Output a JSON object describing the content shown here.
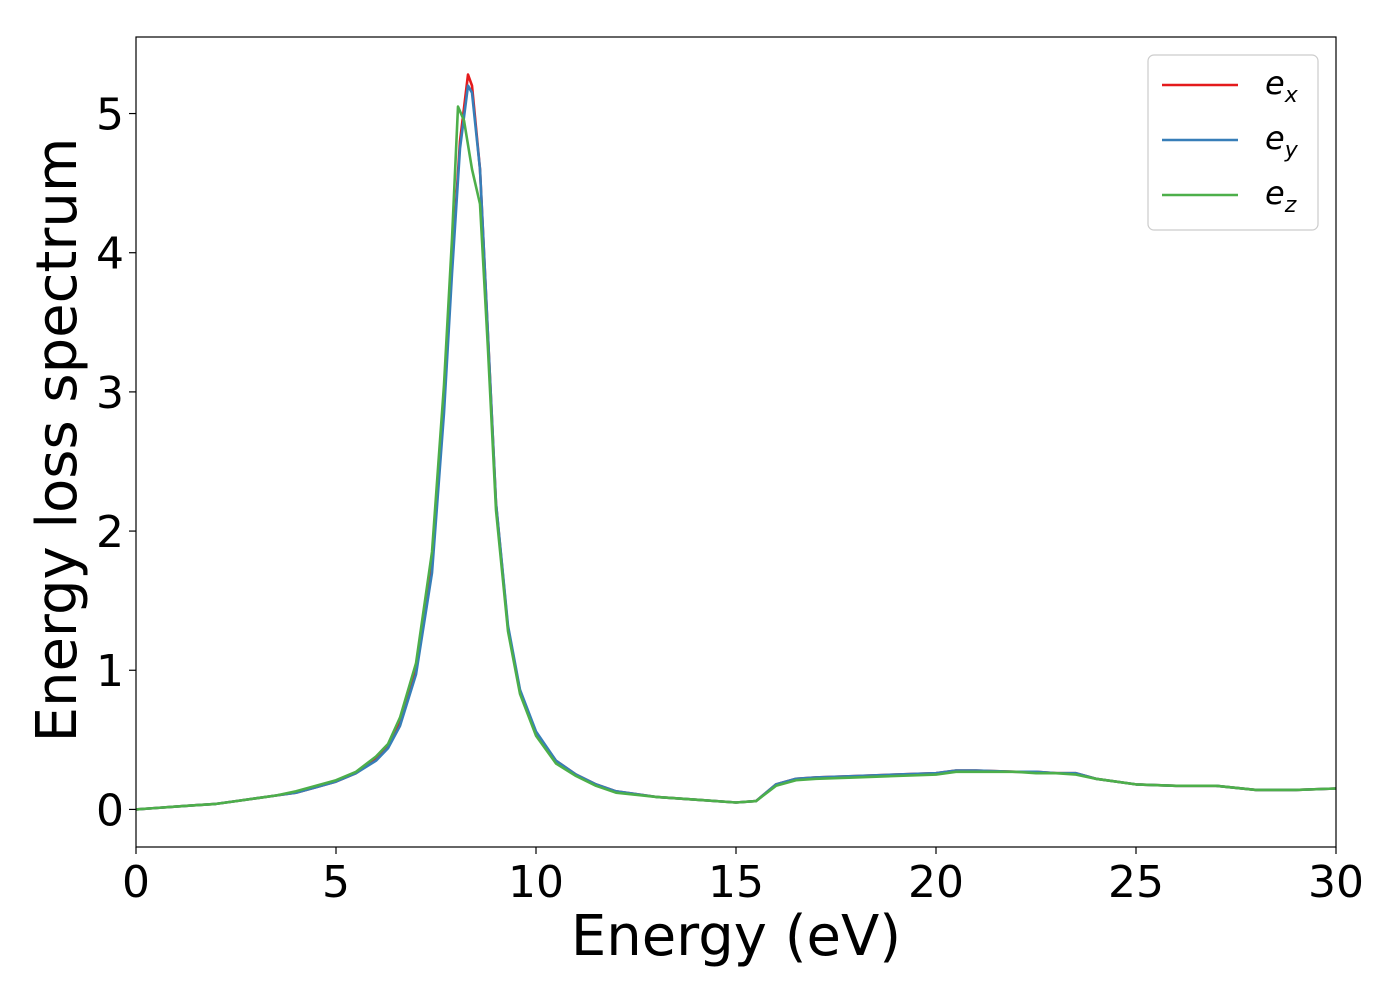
{
  "chart_data": {
    "type": "line",
    "xlabel": "Energy (eV)",
    "ylabel": "Energy loss spectrum",
    "xlim": [
      0,
      30
    ],
    "ylim": [
      -0.27,
      5.55
    ],
    "xticks": [
      0,
      5,
      10,
      15,
      20,
      25,
      30
    ],
    "yticks": [
      0,
      1,
      2,
      3,
      4,
      5
    ],
    "grid": false,
    "legend_position": "top-right",
    "series": [
      {
        "name": "e",
        "sub": "x",
        "color": "#e41a1c",
        "x": [
          0,
          0.5,
          1,
          1.5,
          2,
          2.5,
          3,
          3.5,
          4,
          4.5,
          5,
          5.5,
          6,
          6.3,
          6.6,
          7,
          7.4,
          7.7,
          7.9,
          8.1,
          8.3,
          8.4,
          8.6,
          8.8,
          9,
          9.3,
          9.6,
          10,
          10.5,
          11,
          11.5,
          12,
          13,
          14,
          15,
          15.5,
          16,
          16.5,
          17,
          18,
          19,
          20,
          20.5,
          21,
          22,
          22.5,
          23,
          23.5,
          24,
          25,
          26,
          27,
          28,
          29,
          30
        ],
        "y": [
          0,
          0.01,
          0.02,
          0.03,
          0.04,
          0.06,
          0.08,
          0.1,
          0.12,
          0.16,
          0.2,
          0.26,
          0.36,
          0.45,
          0.62,
          1.0,
          1.75,
          2.9,
          3.9,
          4.8,
          5.28,
          5.2,
          4.6,
          3.4,
          2.2,
          1.3,
          0.85,
          0.55,
          0.35,
          0.25,
          0.18,
          0.13,
          0.09,
          0.07,
          0.05,
          0.06,
          0.18,
          0.22,
          0.23,
          0.24,
          0.25,
          0.26,
          0.28,
          0.28,
          0.27,
          0.27,
          0.26,
          0.26,
          0.22,
          0.18,
          0.17,
          0.17,
          0.14,
          0.14,
          0.15
        ]
      },
      {
        "name": "e",
        "sub": "y",
        "color": "#377eb8",
        "x": [
          0,
          0.5,
          1,
          1.5,
          2,
          2.5,
          3,
          3.5,
          4,
          4.5,
          5,
          5.5,
          6,
          6.3,
          6.6,
          7,
          7.4,
          7.7,
          7.9,
          8.1,
          8.3,
          8.4,
          8.6,
          8.8,
          9,
          9.3,
          9.6,
          10,
          10.5,
          11,
          11.5,
          12,
          13,
          14,
          15,
          15.5,
          16,
          16.5,
          17,
          18,
          19,
          20,
          20.5,
          21,
          22,
          22.5,
          23,
          23.5,
          24,
          25,
          26,
          27,
          28,
          29,
          30
        ],
        "y": [
          0,
          0.01,
          0.02,
          0.03,
          0.04,
          0.06,
          0.08,
          0.1,
          0.12,
          0.16,
          0.2,
          0.26,
          0.35,
          0.44,
          0.6,
          0.97,
          1.7,
          2.85,
          3.85,
          4.75,
          5.2,
          5.15,
          4.6,
          3.4,
          2.2,
          1.32,
          0.86,
          0.56,
          0.35,
          0.25,
          0.18,
          0.13,
          0.09,
          0.07,
          0.05,
          0.06,
          0.18,
          0.22,
          0.23,
          0.24,
          0.25,
          0.26,
          0.28,
          0.28,
          0.27,
          0.27,
          0.26,
          0.26,
          0.22,
          0.18,
          0.17,
          0.17,
          0.14,
          0.14,
          0.15
        ]
      },
      {
        "name": "e",
        "sub": "z",
        "color": "#4daf4a",
        "x": [
          0,
          0.5,
          1,
          1.5,
          2,
          2.5,
          3,
          3.5,
          4,
          4.5,
          5,
          5.5,
          6,
          6.3,
          6.6,
          7,
          7.4,
          7.7,
          7.9,
          8.05,
          8.2,
          8.4,
          8.6,
          8.8,
          9,
          9.3,
          9.6,
          10,
          10.5,
          11,
          11.5,
          12,
          13,
          14,
          15,
          15.5,
          16,
          16.5,
          17,
          18,
          19,
          20,
          20.5,
          21,
          22,
          22.5,
          23,
          23.5,
          24,
          25,
          26,
          27,
          28,
          29,
          30
        ],
        "y": [
          0,
          0.01,
          0.02,
          0.03,
          0.04,
          0.06,
          0.08,
          0.1,
          0.13,
          0.17,
          0.21,
          0.27,
          0.38,
          0.47,
          0.66,
          1.05,
          1.85,
          3.05,
          4.1,
          5.05,
          4.95,
          4.6,
          4.35,
          3.3,
          2.15,
          1.28,
          0.83,
          0.53,
          0.33,
          0.24,
          0.17,
          0.12,
          0.09,
          0.07,
          0.05,
          0.06,
          0.17,
          0.21,
          0.22,
          0.23,
          0.24,
          0.25,
          0.27,
          0.27,
          0.27,
          0.26,
          0.26,
          0.25,
          0.22,
          0.18,
          0.17,
          0.17,
          0.14,
          0.14,
          0.15
        ]
      }
    ]
  }
}
